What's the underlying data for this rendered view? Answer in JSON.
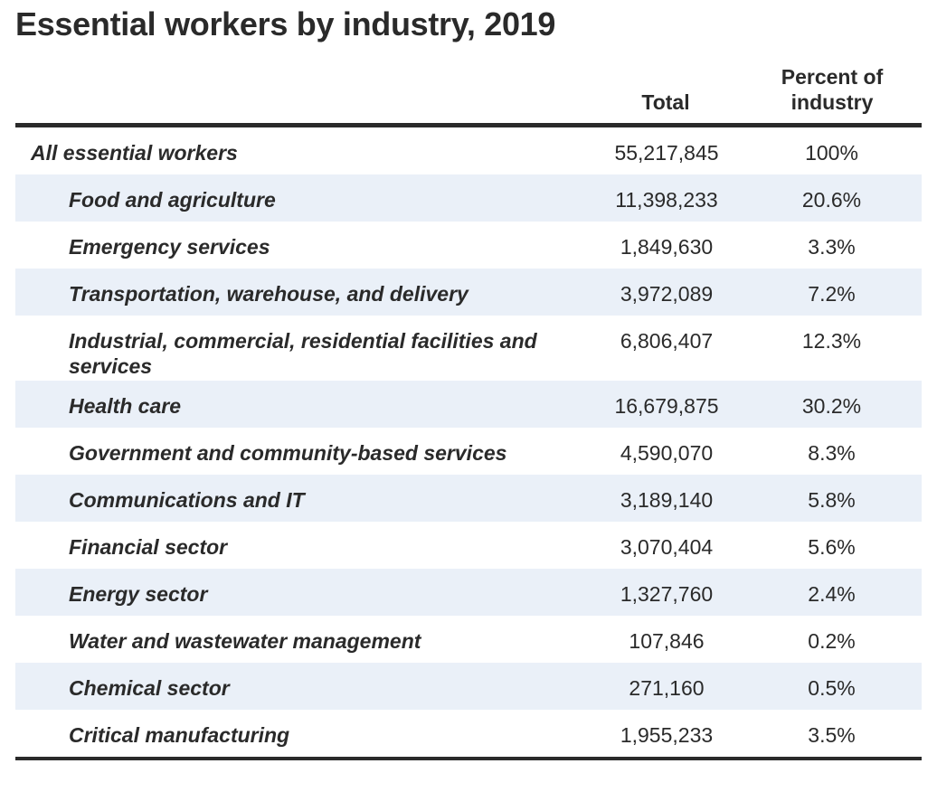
{
  "title": "Essential workers by industry, 2019",
  "columns": {
    "total": "Total",
    "percent": "Percent of industry"
  },
  "colors": {
    "text": "#2a2a2a",
    "row_shade": "#eaf0f8",
    "rule": "#2a2a2a"
  },
  "chart_data": {
    "type": "table",
    "title": "Essential workers by industry, 2019",
    "columns": [
      "",
      "Total",
      "Percent of industry"
    ],
    "rows": [
      {
        "label": "All essential workers",
        "total": "55,217,845",
        "percent": "100%",
        "level": 0,
        "shaded": false
      },
      {
        "label": "Food and agriculture",
        "total": "11,398,233",
        "percent": "20.6%",
        "level": 1,
        "shaded": true
      },
      {
        "label": "Emergency services",
        "total": "1,849,630",
        "percent": "3.3%",
        "level": 1,
        "shaded": false
      },
      {
        "label": "Transportation, warehouse, and delivery",
        "total": "3,972,089",
        "percent": "7.2%",
        "level": 1,
        "shaded": true
      },
      {
        "label": "Industrial, commercial, residential facilities and services",
        "total": "6,806,407",
        "percent": "12.3%",
        "level": 1,
        "shaded": false,
        "two_line": true
      },
      {
        "label": "Health care",
        "total": "16,679,875",
        "percent": "30.2%",
        "level": 1,
        "shaded": true
      },
      {
        "label": "Government and community-based services",
        "total": "4,590,070",
        "percent": "8.3%",
        "level": 1,
        "shaded": false
      },
      {
        "label": "Communications and IT",
        "total": "3,189,140",
        "percent": "5.8%",
        "level": 1,
        "shaded": true
      },
      {
        "label": "Financial sector",
        "total": "3,070,404",
        "percent": "5.6%",
        "level": 1,
        "shaded": false
      },
      {
        "label": "Energy sector",
        "total": "1,327,760",
        "percent": "2.4%",
        "level": 1,
        "shaded": true
      },
      {
        "label": "Water and wastewater management",
        "total": "107,846",
        "percent": "0.2%",
        "level": 1,
        "shaded": false
      },
      {
        "label": "Chemical sector",
        "total": "271,160",
        "percent": "0.5%",
        "level": 1,
        "shaded": true
      },
      {
        "label": "Critical manufacturing",
        "total": "1,955,233",
        "percent": "3.5%",
        "level": 1,
        "shaded": false
      }
    ]
  }
}
